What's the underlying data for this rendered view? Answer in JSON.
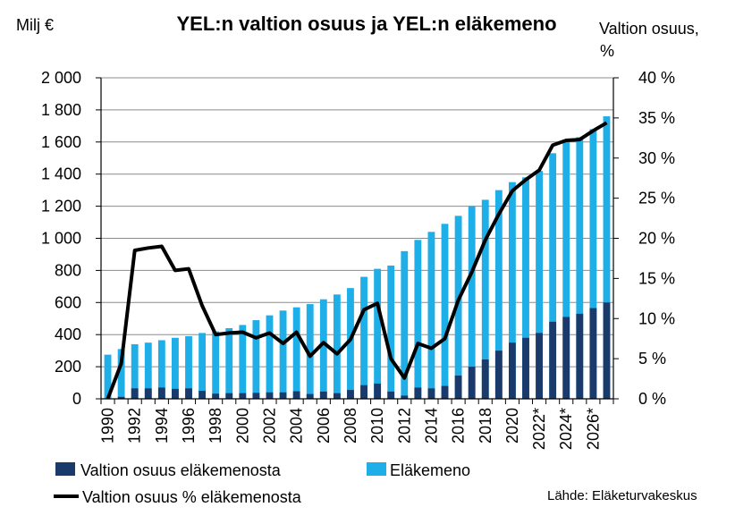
{
  "chart_data": {
    "type": "bar",
    "title": "YEL:n valtion osuus ja YEL:n eläkemeno",
    "ylabel_left": "Milj €",
    "ylabel_right": "Valtion osuus, %",
    "ylim_left": [
      0,
      2000
    ],
    "ylim_right": [
      0,
      40
    ],
    "y_ticks_left": [
      "0",
      "200",
      "400",
      "600",
      "800",
      "1 000",
      "1 200",
      "1 400",
      "1 600",
      "1 800",
      "2 000"
    ],
    "y_ticks_right": [
      "0 %",
      "5 %",
      "10 %",
      "15 %",
      "20 %",
      "25 %",
      "30 %",
      "35 %",
      "40 %"
    ],
    "grid": true,
    "legend_position": "bottom",
    "categories": [
      "1990",
      "1991",
      "1992",
      "1993",
      "1994",
      "1995",
      "1996",
      "1997",
      "1998",
      "1999",
      "2000",
      "2001",
      "2002",
      "2003",
      "2004",
      "2005",
      "2006",
      "2007",
      "2008",
      "2009",
      "2010",
      "2011",
      "2012",
      "2013",
      "2014",
      "2015",
      "2016",
      "2017",
      "2018",
      "2019",
      "2020",
      "2021",
      "2022*",
      "2023*",
      "2024*",
      "2025*",
      "2026*",
      "2027*"
    ],
    "x_tick_labels": [
      "1990",
      "1992",
      "1994",
      "1996",
      "1998",
      "2000",
      "2002",
      "2004",
      "2006",
      "2008",
      "2010",
      "2012",
      "2014",
      "2016",
      "2018",
      "2020",
      "2022*",
      "2024*",
      "2026*"
    ],
    "series": [
      {
        "name": "Valtion osuus eläkemenosta",
        "kind": "bar",
        "color": "#1a3a6b",
        "values": [
          0,
          12,
          65,
          65,
          70,
          62,
          65,
          50,
          32,
          35,
          35,
          37,
          40,
          40,
          47,
          30,
          45,
          35,
          55,
          85,
          95,
          45,
          20,
          70,
          65,
          80,
          145,
          200,
          245,
          300,
          350,
          380,
          410,
          480,
          510,
          530,
          565,
          600
        ]
      },
      {
        "name": "Eläkemeno",
        "kind": "bar",
        "color": "#1eaee8",
        "values": [
          275,
          310,
          340,
          350,
          365,
          380,
          390,
          410,
          420,
          440,
          460,
          490,
          520,
          550,
          570,
          590,
          620,
          650,
          690,
          760,
          810,
          830,
          920,
          990,
          1040,
          1090,
          1140,
          1200,
          1240,
          1300,
          1350,
          1380,
          1420,
          1530,
          1600,
          1630,
          1680,
          1760
        ]
      },
      {
        "name": "Valtion osuus % eläkemenosta",
        "kind": "line",
        "axis": "right",
        "color": "#000000",
        "values": [
          0,
          4.4,
          18.5,
          18.8,
          19.0,
          16.0,
          16.2,
          11.6,
          8.0,
          8.2,
          8.3,
          7.6,
          8.2,
          6.9,
          8.3,
          5.3,
          7.0,
          5.6,
          7.4,
          11.1,
          11.9,
          5.0,
          2.6,
          6.9,
          6.3,
          7.5,
          12.3,
          15.8,
          19.8,
          23.0,
          25.9,
          27.3,
          28.5,
          31.6,
          32.2,
          32.3,
          33.4,
          34.4
        ]
      }
    ]
  },
  "source_note": "Lähde: Eläketurvakeskus"
}
